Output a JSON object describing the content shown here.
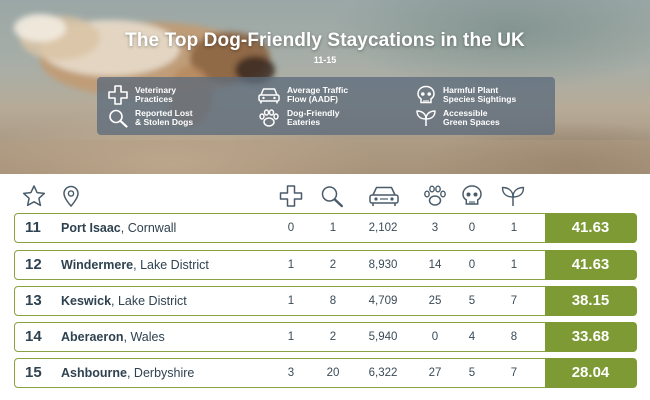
{
  "hero": {
    "title": "The Top Dog-Friendly Staycations in the UK",
    "subtitle": "11-15"
  },
  "legend": [
    {
      "icon": "medical-cross-icon",
      "label": "Veterinary\nPractices"
    },
    {
      "icon": "magnifier-icon",
      "label": "Reported Lost\n& Stolen Dogs"
    },
    {
      "icon": "car-icon",
      "label": "Average Traffic\nFlow (AADF)"
    },
    {
      "icon": "paw-icon",
      "label": "Dog-Friendly\nEateries"
    },
    {
      "icon": "skull-icon",
      "label": "Harmful Plant\nSpecies Sightings"
    },
    {
      "icon": "leaf-icon",
      "label": "Accessible\nGreen Spaces"
    }
  ],
  "columns": [
    "star-icon",
    "location-pin-icon",
    "medical-cross-icon",
    "magnifier-icon",
    "car-icon",
    "paw-icon",
    "skull-icon",
    "leaf-icon"
  ],
  "rows": [
    {
      "rank": "11",
      "town": "Port Isaac",
      "region": ", Cornwall",
      "vets": "0",
      "lost": "1",
      "traffic": "2,102",
      "eateries": "3",
      "plants": "0",
      "green": "1",
      "score": "41.63"
    },
    {
      "rank": "12",
      "town": "Windermere",
      "region": ", Lake District",
      "vets": "1",
      "lost": "2",
      "traffic": "8,930",
      "eateries": "14",
      "plants": "0",
      "green": "1",
      "score": "41.63"
    },
    {
      "rank": "13",
      "town": "Keswick",
      "region": ", Lake District",
      "vets": "1",
      "lost": "8",
      "traffic": "4,709",
      "eateries": "25",
      "plants": "5",
      "green": "7",
      "score": "38.15"
    },
    {
      "rank": "14",
      "town": "Aberaeron",
      "region": ", Wales",
      "vets": "1",
      "lost": "2",
      "traffic": "5,940",
      "eateries": "0",
      "plants": "4",
      "green": "8",
      "score": "33.68"
    },
    {
      "rank": "15",
      "town": "Ashbourne",
      "region": ", Derbyshire",
      "vets": "3",
      "lost": "20",
      "traffic": "6,322",
      "eateries": "27",
      "plants": "5",
      "green": "7",
      "score": "28.04"
    }
  ],
  "colors": {
    "accent": "#7d9a34",
    "border": "#87a23f",
    "text": "#2f4250",
    "legend_bg": "#5c6c7c"
  }
}
